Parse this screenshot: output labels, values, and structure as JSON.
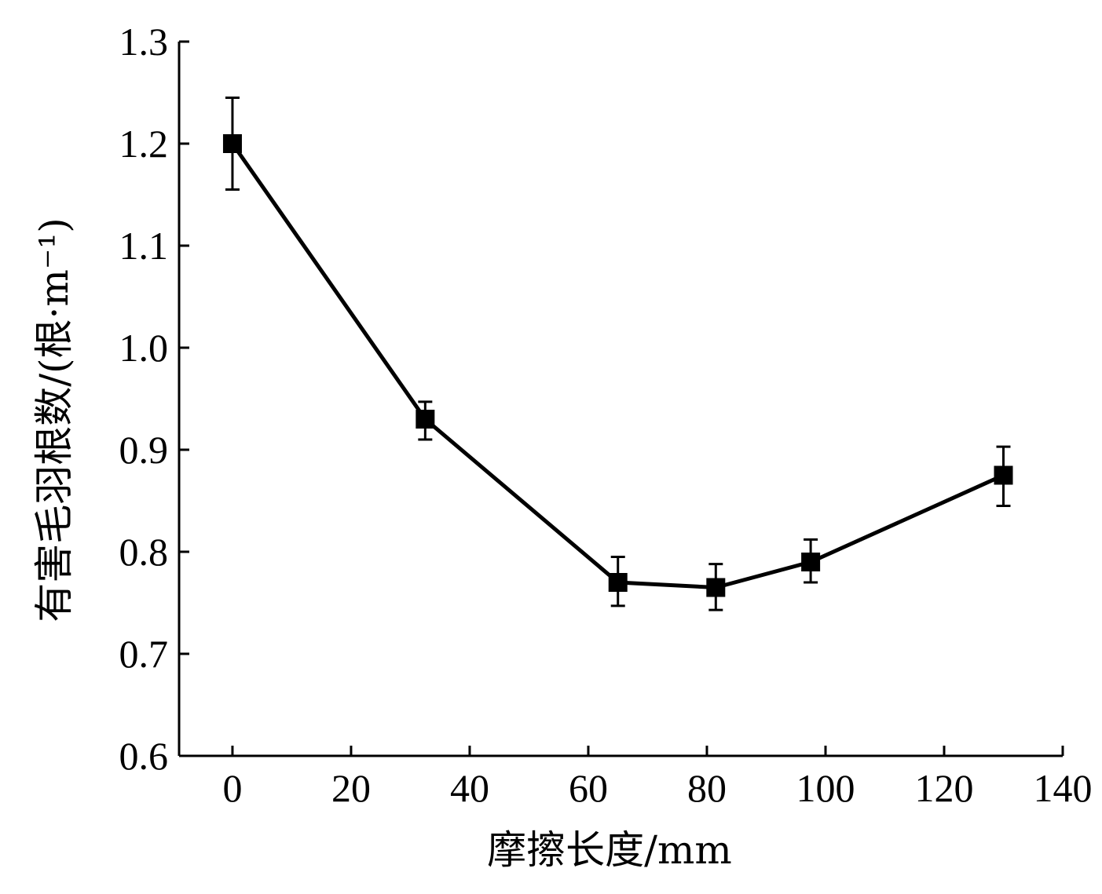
{
  "chart_data": {
    "type": "line",
    "xlabel": "摩擦长度/mm",
    "ylabel": "有害毛羽根数/(根·m⁻¹)",
    "xlim": [
      -9,
      140
    ],
    "ylim": [
      0.6,
      1.3
    ],
    "xticks": [
      0,
      20,
      40,
      60,
      80,
      100,
      120,
      140
    ],
    "yticks": [
      0.6,
      0.7,
      0.8,
      0.9,
      1.0,
      1.1,
      1.2,
      1.3
    ],
    "xtick_labels": [
      "0",
      "20",
      "40",
      "60",
      "80",
      "100",
      "120",
      "140"
    ],
    "ytick_labels": [
      "0.6",
      "0.7",
      "0.8",
      "0.9",
      "1.0",
      "1.1",
      "1.2",
      "1.3"
    ],
    "marker": "square",
    "series": [
      {
        "x": [
          0,
          32.5,
          65,
          81.5,
          97.5,
          130
        ],
        "y": [
          1.2,
          0.93,
          0.77,
          0.765,
          0.79,
          0.875
        ],
        "err_upper": [
          0.045,
          0.017,
          0.025,
          0.023,
          0.022,
          0.028
        ],
        "err_lower": [
          0.045,
          0.02,
          0.023,
          0.022,
          0.02,
          0.03
        ]
      }
    ],
    "grid": false,
    "legend": "none"
  }
}
